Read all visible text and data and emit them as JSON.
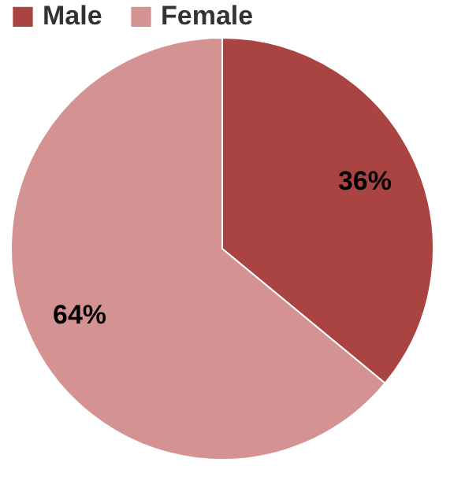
{
  "chart_data": {
    "type": "pie",
    "categories": [
      "Male",
      "Female"
    ],
    "values": [
      36,
      64
    ],
    "colors": [
      "#a94442",
      "#d49392"
    ],
    "value_labels": [
      "36%",
      "64%"
    ],
    "legend": "top"
  }
}
